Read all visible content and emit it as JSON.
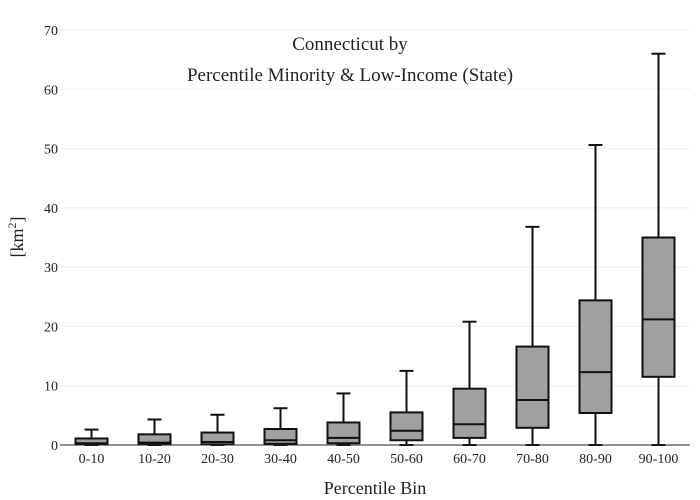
{
  "chart_data": {
    "type": "box",
    "title_line1": "Connecticut  by",
    "title_line2": "Percentile Minority & Low-Income (State)",
    "xlabel": "Percentile Bin",
    "ylabel_base": "[km",
    "ylabel_sup": "2",
    "ylabel_end": "]",
    "ylim": [
      0,
      70
    ],
    "yticks": [
      0,
      10,
      20,
      30,
      40,
      50,
      60,
      70
    ],
    "grid": "horizontal",
    "colors": {
      "box_fill": "#a0a0a0",
      "stroke": "#111111",
      "grid": "#eeeeee"
    },
    "categories": [
      "0-10",
      "10-20",
      "20-30",
      "30-40",
      "40-50",
      "50-60",
      "60-70",
      "70-80",
      "80-90",
      "90-100"
    ],
    "boxes": [
      {
        "category": "0-10",
        "min": 0,
        "q1": 0.1,
        "median": 0.3,
        "q3": 1.1,
        "max": 2.6
      },
      {
        "category": "10-20",
        "min": 0,
        "q1": 0.1,
        "median": 0.4,
        "q3": 1.8,
        "max": 4.3
      },
      {
        "category": "20-30",
        "min": 0,
        "q1": 0.1,
        "median": 0.5,
        "q3": 2.1,
        "max": 5.1
      },
      {
        "category": "30-40",
        "min": 0,
        "q1": 0.2,
        "median": 0.8,
        "q3": 2.7,
        "max": 6.2
      },
      {
        "category": "40-50",
        "min": 0,
        "q1": 0.3,
        "median": 1.2,
        "q3": 3.8,
        "max": 8.7
      },
      {
        "category": "50-60",
        "min": 0,
        "q1": 0.8,
        "median": 2.4,
        "q3": 5.5,
        "max": 12.5
      },
      {
        "category": "60-70",
        "min": 0,
        "q1": 1.2,
        "median": 3.5,
        "q3": 9.5,
        "max": 20.8
      },
      {
        "category": "70-80",
        "min": 0,
        "q1": 2.9,
        "median": 7.6,
        "q3": 16.6,
        "max": 36.8
      },
      {
        "category": "80-90",
        "min": 0,
        "q1": 5.4,
        "median": 12.3,
        "q3": 24.4,
        "max": 50.6
      },
      {
        "category": "90-100",
        "min": 0,
        "q1": 11.5,
        "median": 21.2,
        "q3": 35.0,
        "max": 66.0
      }
    ]
  }
}
